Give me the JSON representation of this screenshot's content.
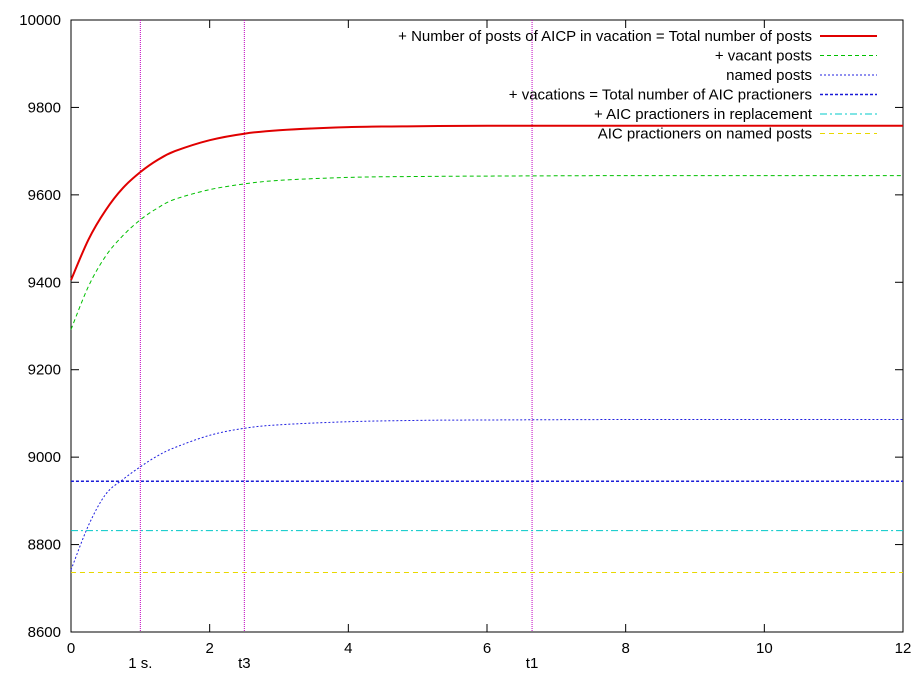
{
  "chart_data": {
    "type": "line",
    "title": "",
    "xlabel": "",
    "ylabel": "",
    "xlim": [
      0,
      12
    ],
    "ylim": [
      8600,
      10000
    ],
    "x_ticks": [
      0,
      2,
      4,
      6,
      8,
      10,
      12
    ],
    "y_ticks": [
      8600,
      8800,
      9000,
      9200,
      9400,
      9600,
      9800,
      10000
    ],
    "grid": false,
    "legend_position": "top-right",
    "series": [
      {
        "name": "+ Number of posts of AICP in vacation = Total number of posts",
        "color": "#e00000",
        "dash": "solid",
        "width": 2,
        "x": [
          0,
          0.25,
          0.5,
          0.75,
          1,
          1.25,
          1.5,
          2,
          2.5,
          3,
          4,
          5,
          6,
          8,
          10,
          12
        ],
        "values": [
          9405,
          9497,
          9565,
          9616,
          9652,
          9680,
          9700,
          9725,
          9740,
          9748,
          9755,
          9757,
          9758,
          9758,
          9758,
          9758
        ]
      },
      {
        "name": "+ vacant posts",
        "color": "#00c000",
        "dash": "4,3",
        "width": 1,
        "x": [
          0,
          0.25,
          0.5,
          0.75,
          1,
          1.25,
          1.5,
          2,
          2.5,
          3,
          4,
          5,
          6,
          8,
          10,
          12
        ],
        "values": [
          9292,
          9390,
          9460,
          9507,
          9543,
          9570,
          9590,
          9612,
          9625,
          9633,
          9640,
          9642,
          9643,
          9644,
          9644,
          9644
        ]
      },
      {
        "name": "named posts",
        "color": "#2020e0",
        "dash": "2,2",
        "width": 1,
        "x": [
          0,
          0.25,
          0.5,
          0.75,
          1,
          1.25,
          1.5,
          2,
          2.5,
          3,
          4,
          5,
          6,
          8,
          10,
          12
        ],
        "values": [
          8742,
          8843,
          8915,
          8949,
          8978,
          9003,
          9022,
          9050,
          9066,
          9074,
          9081,
          9084,
          9085,
          9086,
          9086,
          9086
        ]
      },
      {
        "name": "+ vacations = Total number of AIC practioners",
        "color": "#1a1ad8",
        "dash": "3,2",
        "width": 1.5,
        "x": [
          0,
          12
        ],
        "values": [
          8945,
          8945
        ]
      },
      {
        "name": "+ AIC practioners in replacement",
        "color": "#00c8c8",
        "dash": "7,3,2,3",
        "width": 1,
        "x": [
          0,
          12
        ],
        "values": [
          8832,
          8832
        ]
      },
      {
        "name": "AIC practioners on named posts",
        "color": "#e8d800",
        "dash": "5,4",
        "width": 1,
        "x": [
          0,
          12
        ],
        "values": [
          8736,
          8736
        ]
      }
    ],
    "vertical_markers": [
      {
        "x": 1.0,
        "label": "1 s.",
        "color": "#c000c0"
      },
      {
        "x": 2.5,
        "label": "t3",
        "color": "#c000c0"
      },
      {
        "x": 6.65,
        "label": "t1",
        "color": "#c000c0"
      }
    ]
  }
}
